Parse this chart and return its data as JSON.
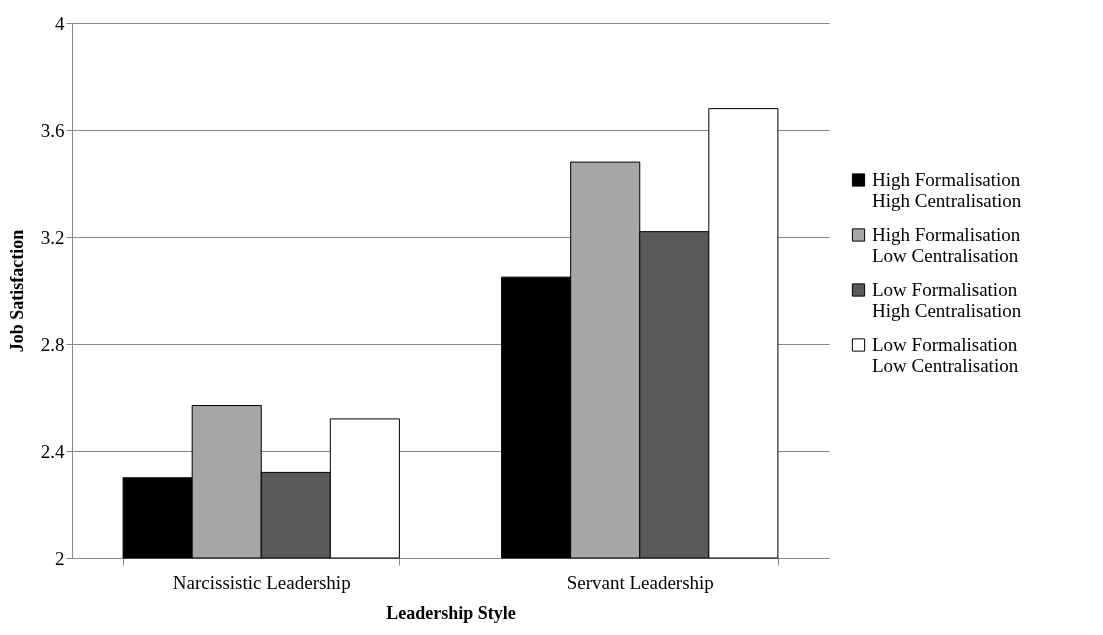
{
  "chart_data": {
    "type": "bar",
    "xlabel": "Leadership Style",
    "ylabel": "Job Satisfaction",
    "categories": [
      "Narcissistic Leadership",
      "Servant Leadership"
    ],
    "series": [
      {
        "name": "High Formalisation\nHigh Centralisation",
        "color": "#000000",
        "values": [
          2.3,
          3.05
        ]
      },
      {
        "name": "High Formalisation\nLow Centralisation",
        "color": "#a6a6a6",
        "values": [
          2.57,
          3.48
        ]
      },
      {
        "name": "Low Formalisation\nHigh Centralisation",
        "color": "#595959",
        "values": [
          2.32,
          3.22
        ]
      },
      {
        "name": "Low Formalisation\nLow Centralisation",
        "color": "#ffffff",
        "values": [
          2.52,
          3.68
        ]
      }
    ],
    "ylim": [
      2,
      4
    ],
    "yticks": [
      2,
      2.4,
      2.8,
      3.2,
      3.6,
      4
    ],
    "grid": "y",
    "legend": "right"
  }
}
